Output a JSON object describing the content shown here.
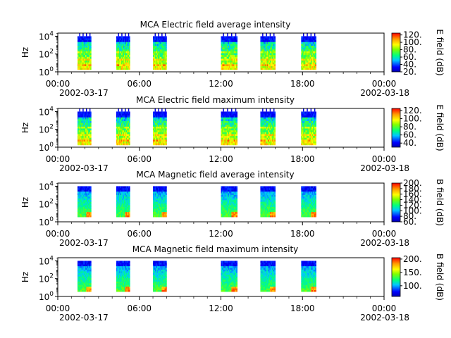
{
  "chart_data": [
    {
      "type": "heatmap",
      "title": "MCA  Electric field average intensity",
      "ylabel": "Hz",
      "yticks": [
        "10^0",
        "10^2",
        "10^4"
      ],
      "xticks": [
        "00:00",
        "06:00",
        "12:00",
        "18:00",
        "00:00"
      ],
      "date_start": "2002-03-17",
      "date_end": "2002-03-18",
      "colorbar_label": "E field (dB)",
      "colorbar_range": [
        20,
        125
      ],
      "colorbar_ticks": [
        "20.",
        "40.",
        "60.",
        "80.",
        "100.",
        "120."
      ],
      "scheme": "electric"
    },
    {
      "type": "heatmap",
      "title": "MCA  Electric field maximum intensity",
      "ylabel": "Hz",
      "yticks": [
        "10^0",
        "10^2",
        "10^4"
      ],
      "xticks": [
        "00:00",
        "06:00",
        "12:00",
        "18:00",
        "00:00"
      ],
      "date_start": "2002-03-17",
      "date_end": "2002-03-18",
      "colorbar_label": "E field (dB)",
      "colorbar_range": [
        30,
        125
      ],
      "colorbar_ticks": [
        "40.",
        "60.",
        "80.",
        "100.",
        "120."
      ],
      "scheme": "electric"
    },
    {
      "type": "heatmap",
      "title": "MCA  Magnetic field average intensity",
      "ylabel": "Hz",
      "yticks": [
        "10^0",
        "10^2",
        "10^4"
      ],
      "xticks": [
        "00:00",
        "06:00",
        "12:00",
        "18:00",
        "00:00"
      ],
      "date_start": "2002-03-17",
      "date_end": "2002-03-18",
      "colorbar_label": "B field (dB)",
      "colorbar_range": [
        60,
        200
      ],
      "colorbar_ticks": [
        "60.",
        "80.",
        "100.",
        "120.",
        "140.",
        "160.",
        "180.",
        "200."
      ],
      "scheme": "magnetic"
    },
    {
      "type": "heatmap",
      "title": "MCA  Magnetic field maximum intensity",
      "ylabel": "Hz",
      "yticks": [
        "10^0",
        "10^2",
        "10^4"
      ],
      "xticks": [
        "00:00",
        "06:00",
        "12:00",
        "18:00",
        "00:00"
      ],
      "date_start": "2002-03-17",
      "date_end": "2002-03-18",
      "colorbar_label": "B field (dB)",
      "colorbar_range": [
        60,
        205
      ],
      "colorbar_ticks": [
        "100.",
        "150.",
        "200."
      ],
      "scheme": "magnetic"
    }
  ],
  "data_segments_hours": [
    [
      1.45,
      2.45
    ],
    [
      4.3,
      5.3
    ],
    [
      7.0,
      8.0
    ],
    [
      12.0,
      13.2
    ],
    [
      14.9,
      16.0
    ],
    [
      17.9,
      19.0
    ]
  ]
}
